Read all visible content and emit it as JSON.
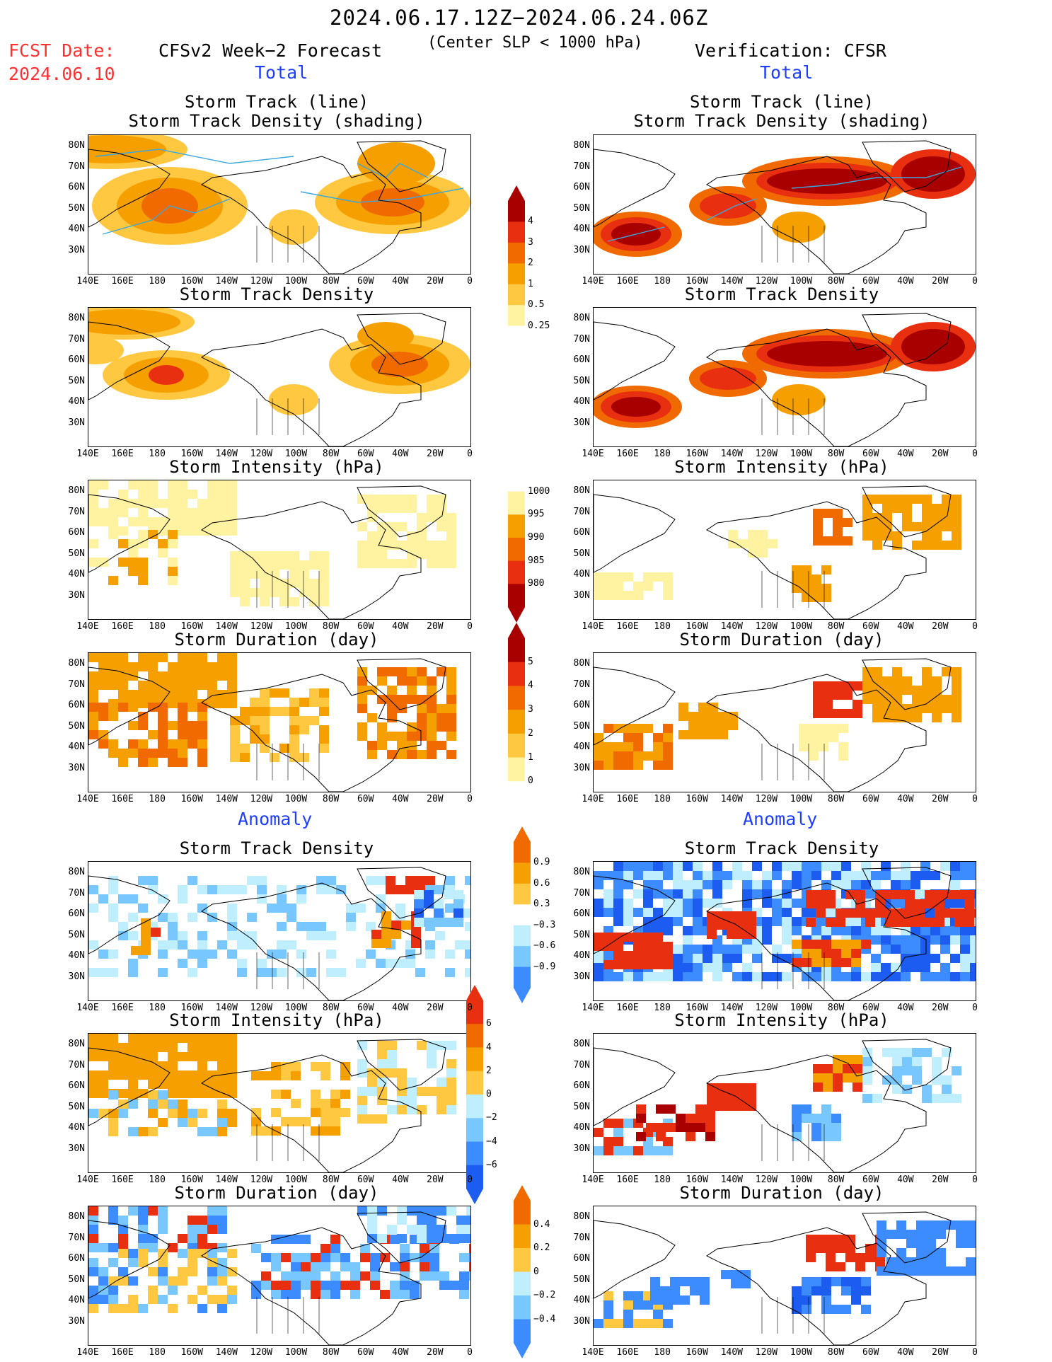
{
  "header": {
    "title": "2024.06.17.12Z−2024.06.24.06Z",
    "subtitle": "(Center SLP < 1000 hPa)",
    "fcst_label": "FCST Date:",
    "fcst_date": "2024.06.10",
    "model_label": "CFSv2 Week−2 Forecast",
    "verification_label": "Verification: CFSR"
  },
  "sections": {
    "total_left": "Total",
    "total_right": "Total",
    "anomaly_left": "Anomaly",
    "anomaly_right": "Anomaly"
  },
  "panel_titles": {
    "track_line": "Storm Track (line)",
    "track_shading": "Storm Track Density (shading)",
    "track_density": "Storm Track Density",
    "intensity": "Storm Intensity (hPa)",
    "duration": "Storm Duration (day)"
  },
  "axes": {
    "lat_labels": [
      "80N",
      "70N",
      "60N",
      "50N",
      "40N",
      "30N"
    ],
    "lon_labels": [
      "140E",
      "160E",
      "180",
      "160W",
      "140W",
      "120W",
      "100W",
      "80W",
      "60W",
      "40W",
      "20W",
      "0"
    ]
  },
  "colorbars": {
    "density_total": [
      "4",
      "3",
      "2",
      "1",
      "0.5",
      "0.25"
    ],
    "intensity_total": [
      "1000",
      "995",
      "990",
      "985",
      "980"
    ],
    "duration_total": [
      "5",
      "4",
      "3",
      "2",
      "1",
      "0"
    ],
    "density_anom": [
      "0.9",
      "0.6",
      "0.3",
      "−0.3",
      "−0.6",
      "−0.9"
    ],
    "intensity_anom": [
      "6",
      "4",
      "2",
      "0",
      "−2",
      "−4",
      "−6"
    ],
    "duration_anom": [
      "0.4",
      "0.2",
      "0",
      "−0.2",
      "−0.4"
    ]
  },
  "colors": {
    "dark_red": "#a80000",
    "red": "#e83010",
    "orange_red": "#f06a00",
    "orange": "#f5a000",
    "light_orange": "#ffc840",
    "pale_yellow": "#fff2a0",
    "pale_blue": "#bfefff",
    "light_blue": "#78c8ff",
    "blue": "#3c8cff",
    "dark_blue": "#1c5cf0",
    "track_line": "#3aa8e0"
  }
}
